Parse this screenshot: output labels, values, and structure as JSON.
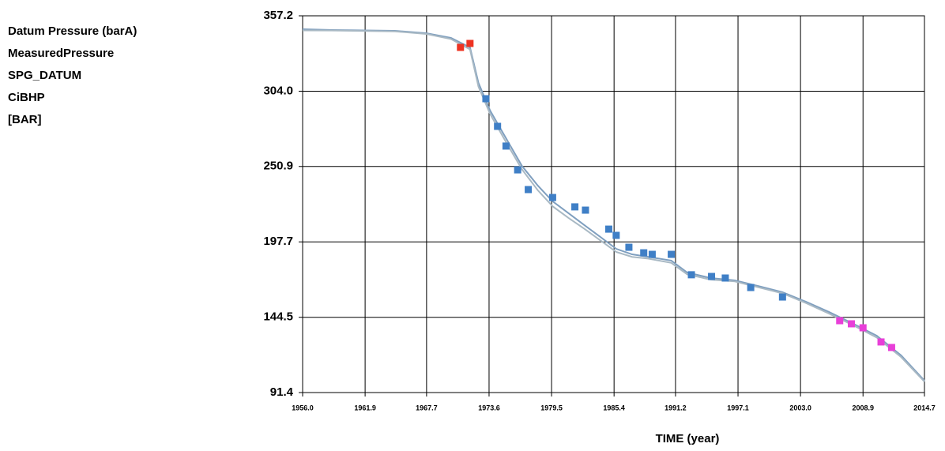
{
  "chart_data": {
    "type": "line",
    "left_labels": [
      "Datum Pressure (barA)",
      "MeasuredPressure",
      "SPG_DATUM",
      "CiBHP",
      "[BAR]"
    ],
    "xlabel": "TIME (year)",
    "xlim": [
      1956.0,
      2014.7
    ],
    "xticks": [
      {
        "value": 1956,
        "label": "1956.0"
      },
      1961.9,
      1967.7,
      1973.6,
      1979.5,
      1985.4,
      1991.2,
      1997.1,
      {
        "value": 2003,
        "label": "2003.0"
      },
      2008.9,
      2014.7
    ],
    "ylim": [
      91.4,
      357.2
    ],
    "yticks": [
      91.4,
      144.5,
      197.7,
      250.9,
      {
        "value": 304,
        "label": "304.0"
      },
      357.2
    ],
    "grid": true,
    "series": [
      {
        "mark": "line",
        "color": "#7f9fbf",
        "x": [
          1956.0,
          1958.8,
          1964.7,
          1967.7,
          1970.0,
          1971.8,
          1972.6,
          1973.7,
          1975.2,
          1976.7,
          1978.2,
          1979.6,
          1981.1,
          1982.6,
          1984.1,
          1985.6,
          1987.1,
          1988.6,
          1990.8,
          1992.3,
          1994.5,
          1996.8,
          1999.0,
          2001.3,
          2003.5,
          2005.7,
          2008.0,
          2010.2,
          2012.5,
          2014.7
        ],
        "values": [
          347.7,
          347.2,
          346.6,
          344.9,
          341.6,
          334.9,
          309.8,
          290.3,
          270.8,
          251.3,
          237.4,
          226.3,
          217.9,
          209.5,
          201.2,
          192.8,
          188.9,
          187.2,
          184.5,
          176.1,
          172.2,
          170.5,
          166.6,
          162.2,
          155.5,
          148.2,
          139.9,
          131.5,
          117.6,
          99.8
        ]
      },
      {
        "mark": "line",
        "color": "#a9b9c4",
        "x": [
          1956.0,
          1958.8,
          1964.7,
          1967.7,
          1970.0,
          1971.8,
          1972.6,
          1973.7,
          1975.2,
          1976.7,
          1978.2,
          1979.6,
          1981.1,
          1982.6,
          1984.1,
          1985.6,
          1987.1,
          1988.6,
          1990.8,
          1992.3,
          1994.5,
          1996.8,
          1999.0,
          2001.3,
          2003.5,
          2005.7,
          2008.0,
          2010.2,
          2012.5,
          2014.7
        ],
        "values": [
          346.9,
          346.8,
          346.2,
          344.4,
          340.8,
          333.5,
          307.2,
          287.9,
          268.1,
          248.9,
          234.1,
          222.8,
          214.6,
          206.9,
          198.8,
          190.6,
          187.1,
          185.9,
          182.9,
          174.8,
          171.1,
          169.8,
          165.7,
          161.4,
          154.6,
          147.1,
          138.8,
          130.2,
          116.4,
          99.1
        ]
      },
      {
        "mark": "square",
        "color": "#ee3322",
        "x": [
          1970.9,
          1971.8
        ],
        "values": [
          334.9,
          337.7
        ]
      },
      {
        "mark": "square",
        "color": "#3f7fc6",
        "x": [
          1973.3,
          1974.4,
          1975.2,
          1976.3,
          1977.3,
          1979.6,
          1981.7,
          1982.7,
          1984.9,
          1985.6,
          1986.8,
          1988.2,
          1989.0,
          1990.8,
          1992.7,
          1994.6,
          1995.9,
          1998.3,
          2001.3
        ],
        "values": [
          298.7,
          279.2,
          265.3,
          248.5,
          234.6,
          229.0,
          222.4,
          220.1,
          206.7,
          202.3,
          193.9,
          190.0,
          188.9,
          188.9,
          174.5,
          173.3,
          172.2,
          165.5,
          158.8
        ]
      },
      {
        "mark": "square",
        "color": "#e83fd8",
        "x": [
          2006.7,
          2007.8,
          2008.9,
          2010.6,
          2011.6
        ],
        "values": [
          142.1,
          139.9,
          137.1,
          127.1,
          123.2
        ]
      }
    ]
  }
}
